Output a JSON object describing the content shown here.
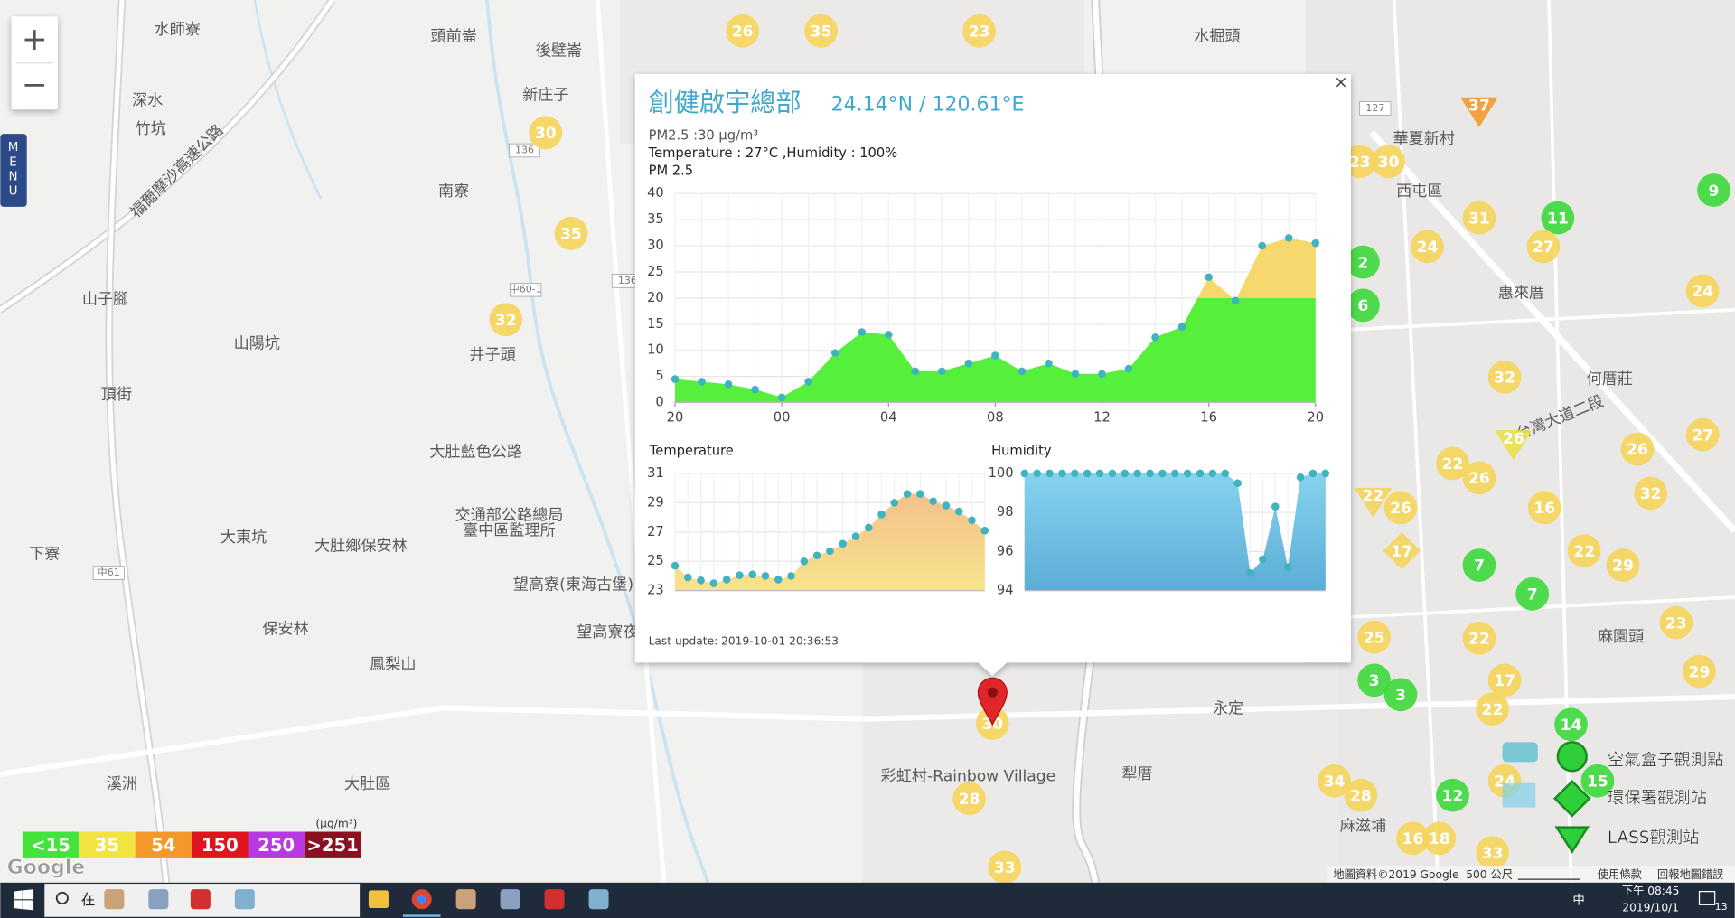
{
  "menu": "MENU",
  "zoom": {
    "in": "+",
    "out": "−"
  },
  "map": {
    "places": [
      "水師寮",
      "頭前崙",
      "後壁崙",
      "新庄子",
      "南寮",
      "深水",
      "竹坑",
      "山子腳",
      "山陽坑",
      "井子頭",
      "頂街",
      "下寮",
      "大東坑",
      "大肚鄉保安林",
      "保安林",
      "鳳梨山",
      "溪洲",
      "大肚區",
      "大肚藍色公路",
      "交通部公路總局",
      "臺中區監理所",
      "望高寮(東海古堡)",
      "望高寮夜景",
      "水掘頭",
      "華夏新村",
      "西屯區",
      "惠來厝",
      "何厝莊",
      "麻園頭",
      "永定",
      "犁厝",
      "麻滋埔",
      "彩虹村-Rainbow Village",
      "台灣大道二段",
      "福爾摩沙高速公路"
    ],
    "road_labels": [
      "136",
      "127",
      "中60-1",
      "中61",
      "136"
    ],
    "markers": [
      {
        "value": 26,
        "color": "#f5d55e",
        "shape": "circle"
      },
      {
        "value": 35,
        "color": "#f5d55e",
        "shape": "circle"
      },
      {
        "value": 23,
        "color": "#f5d55e",
        "shape": "circle"
      },
      {
        "value": 30,
        "color": "#f5d55e",
        "shape": "circle"
      },
      {
        "value": 35,
        "color": "#f5d55e",
        "shape": "circle"
      },
      {
        "value": 32,
        "color": "#f5d55e",
        "shape": "circle"
      },
      {
        "value": 37,
        "color": "#f39a2e",
        "shape": "triangle"
      },
      {
        "value": 30,
        "color": "#f5d55e",
        "shape": "circle"
      },
      {
        "value": 23,
        "color": "#f5d55e",
        "shape": "circle"
      },
      {
        "value": 31,
        "color": "#f5d55e",
        "shape": "circle"
      },
      {
        "value": 11,
        "color": "#3fd83f",
        "shape": "circle"
      },
      {
        "value": 24,
        "color": "#f5d55e",
        "shape": "circle"
      },
      {
        "value": 27,
        "color": "#f5d55e",
        "shape": "circle"
      },
      {
        "value": 9,
        "color": "#3fd83f",
        "shape": "circle"
      },
      {
        "value": 2,
        "color": "#3fd83f",
        "shape": "circle"
      },
      {
        "value": 6,
        "color": "#3fd83f",
        "shape": "circle"
      },
      {
        "value": 24,
        "color": "#f5d55e",
        "shape": "circle"
      },
      {
        "value": 32,
        "color": "#f5d55e",
        "shape": "circle"
      },
      {
        "value": 26,
        "color": "#e8e04a",
        "shape": "triangle"
      },
      {
        "value": 26,
        "color": "#f5d55e",
        "shape": "circle"
      },
      {
        "value": 27,
        "color": "#f5d55e",
        "shape": "circle"
      },
      {
        "value": 22,
        "color": "#f5d55e",
        "shape": "circle"
      },
      {
        "value": 26,
        "color": "#f5d55e",
        "shape": "circle"
      },
      {
        "value": 32,
        "color": "#f5d55e",
        "shape": "circle"
      },
      {
        "value": 22,
        "color": "#f5d55e",
        "shape": "triangle"
      },
      {
        "value": 26,
        "color": "#f5d55e",
        "shape": "circle"
      },
      {
        "value": 16,
        "color": "#f5d55e",
        "shape": "circle"
      },
      {
        "value": 17,
        "color": "#f5d55e",
        "shape": "diamond"
      },
      {
        "value": 7,
        "color": "#3fd83f",
        "shape": "circle"
      },
      {
        "value": 22,
        "color": "#f5d55e",
        "shape": "circle"
      },
      {
        "value": 29,
        "color": "#f5d55e",
        "shape": "circle"
      },
      {
        "value": 7,
        "color": "#3fd83f",
        "shape": "circle"
      },
      {
        "value": 23,
        "color": "#f5d55e",
        "shape": "circle"
      },
      {
        "value": 25,
        "color": "#f5d55e",
        "shape": "circle"
      },
      {
        "value": 22,
        "color": "#f5d55e",
        "shape": "circle"
      },
      {
        "value": 17,
        "color": "#f5d55e",
        "shape": "circle"
      },
      {
        "value": 3,
        "color": "#3fd83f",
        "shape": "circle"
      },
      {
        "value": 3,
        "color": "#3fd83f",
        "shape": "circle"
      },
      {
        "value": 22,
        "color": "#f5d55e",
        "shape": "circle"
      },
      {
        "value": 29,
        "color": "#f5d55e",
        "shape": "circle"
      },
      {
        "value": 14,
        "color": "#3fd83f",
        "shape": "circle"
      },
      {
        "value": 34,
        "color": "#f5d55e",
        "shape": "circle"
      },
      {
        "value": 28,
        "color": "#f5d55e",
        "shape": "circle"
      },
      {
        "value": 12,
        "color": "#3fd83f",
        "shape": "circle"
      },
      {
        "value": 24,
        "color": "#f5d55e",
        "shape": "circle"
      },
      {
        "value": 15,
        "color": "#3fd83f",
        "shape": "circle"
      },
      {
        "value": 16,
        "color": "#f5d55e",
        "shape": "circle"
      },
      {
        "value": 18,
        "color": "#f5d55e",
        "shape": "circle"
      },
      {
        "value": 33,
        "color": "#f5d55e",
        "shape": "circle"
      },
      {
        "value": 28,
        "color": "#f5d55e",
        "shape": "circle"
      },
      {
        "value": 33,
        "color": "#f5d55e",
        "shape": "circle"
      },
      {
        "value": 30,
        "color": "#f5d55e",
        "shape": "circle"
      }
    ],
    "attribution": {
      "data": "地圖資料©2019 Google",
      "scale": "500 公尺",
      "terms": "使用條款",
      "report": "回報地圖錯誤",
      "logo": "Google"
    }
  },
  "popup": {
    "close": "×",
    "title": "創健啟宇總部",
    "coords": "24.14°N / 120.61°E",
    "pm25": "PM2.5 :30 μg/m³",
    "readings": "Temperature : 27°C ,Humidity : 100%",
    "last_update": "Last update: 2019-10-01 20:36:53"
  },
  "chart_data": [
    {
      "type": "area",
      "title": "PM 2.5",
      "categories": [
        "20",
        null,
        null,
        null,
        "00",
        null,
        null,
        null,
        "04",
        null,
        null,
        null,
        "08",
        null,
        null,
        null,
        "12",
        null,
        null,
        null,
        "16",
        null,
        null,
        null,
        "20"
      ],
      "values": [
        4.5,
        4,
        3.5,
        2.5,
        1,
        4,
        9.5,
        13.5,
        13,
        6,
        6,
        7.5,
        9,
        6,
        7.5,
        5.5,
        5.5,
        6.5,
        12.5,
        14.5,
        24,
        19.5,
        30,
        31.5,
        30.5
      ],
      "ylim": [
        0,
        40
      ],
      "yticks": [
        0,
        5,
        10,
        15,
        20,
        25,
        30,
        35,
        40
      ],
      "grid": true,
      "threshold": 20,
      "colors": {
        "below": "#55ef3c",
        "above": "#f6d86c"
      },
      "point_color": "#3fb3bf"
    },
    {
      "type": "area",
      "title": "Temperature",
      "values": [
        24.7,
        23.9,
        23.7,
        23.5,
        23.75,
        24.05,
        24.1,
        24,
        23.75,
        24,
        25,
        25.4,
        25.7,
        26.2,
        26.7,
        27.3,
        28.2,
        29,
        29.6,
        29.6,
        29.1,
        28.8,
        28.4,
        27.8,
        27.1
      ],
      "ylim": [
        23,
        31
      ],
      "yticks": [
        23,
        25,
        27,
        29,
        31
      ],
      "grid": true,
      "gradient": [
        "#f3b98a",
        "#f7e48c"
      ],
      "point_color": "#3fb3bf"
    },
    {
      "type": "area",
      "title": "Humidity",
      "values": [
        100,
        100,
        100,
        100,
        100,
        100,
        100,
        100,
        100,
        100,
        100,
        100,
        100,
        100,
        100,
        100,
        100,
        99.5,
        94.9,
        95.6,
        98.3,
        95.2,
        99.8,
        100,
        100
      ],
      "ylim": [
        94,
        100
      ],
      "yticks": [
        94,
        96,
        98,
        100
      ],
      "grid": true,
      "gradient": [
        "#86d3ef",
        "#5cadd6"
      ],
      "point_color": "#3fb3bf"
    }
  ],
  "aqi_legend": {
    "unit": "(μg/m³)",
    "levels": [
      {
        "label": "<15",
        "color": "#43e23c"
      },
      {
        "label": "35",
        "color": "#f2e440"
      },
      {
        "label": "54",
        "color": "#f5982a"
      },
      {
        "label": "150",
        "color": "#e0141f"
      },
      {
        "label": "250",
        "color": "#b63ae0"
      },
      {
        "label": ">251",
        "color": "#8b1020"
      }
    ]
  },
  "site_legend": [
    "空氣盒子觀測點",
    "環保署觀測站",
    "LASS觀測站"
  ],
  "taskbar": {
    "search": "在",
    "ime": "中",
    "time": "下午 08:45",
    "date": "2019/10/1",
    "notifications": "13"
  }
}
